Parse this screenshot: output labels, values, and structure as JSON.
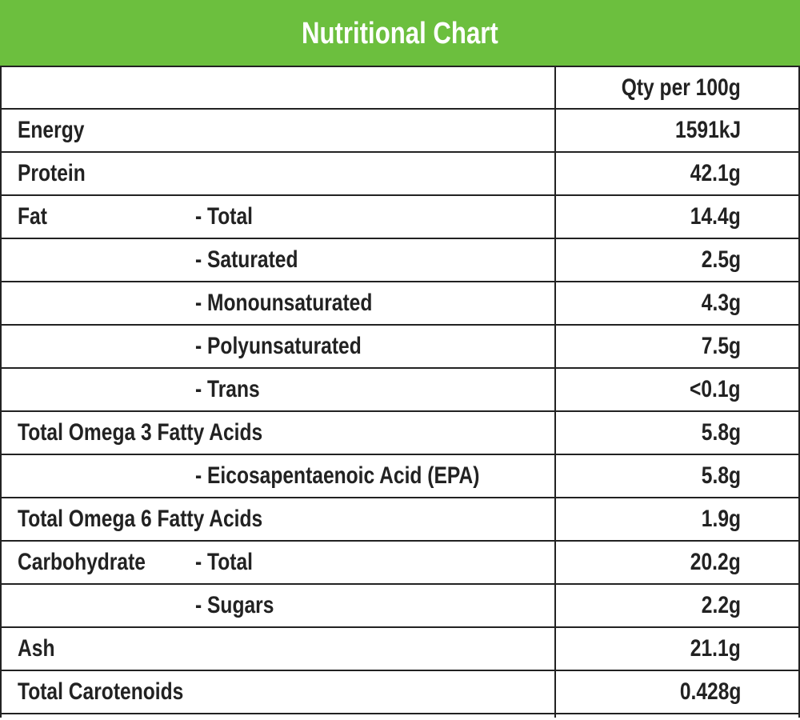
{
  "header": {
    "title": "Nutritional Chart"
  },
  "table": {
    "column_header": "Qty per 100g",
    "rows": [
      {
        "label": "Energy",
        "value": "1591kJ"
      },
      {
        "label": "Protein",
        "value": "42.1g"
      },
      {
        "label": "Fat",
        "sub": "- Total",
        "value": "14.4g"
      },
      {
        "sub": "- Saturated",
        "value": "2.5g"
      },
      {
        "sub": "- Monounsaturated",
        "value": "4.3g"
      },
      {
        "sub": "- Polyunsaturated",
        "value": "7.5g"
      },
      {
        "sub": "- Trans",
        "value": "<0.1g"
      },
      {
        "label": "Total Omega 3 Fatty Acids",
        "value": "5.8g"
      },
      {
        "sub": "- Eicosapentaenoic Acid (EPA)",
        "value": "5.8g"
      },
      {
        "label": "Total Omega 6 Fatty Acids",
        "value": "1.9g"
      },
      {
        "label": "Carbohydrate",
        "sub": "- Total",
        "value": "20.2g"
      },
      {
        "sub": "- Sugars",
        "value": "2.2g"
      },
      {
        "label": "Ash",
        "value": "21.1g"
      },
      {
        "label": "Total Carotenoids",
        "value": "0.428g"
      }
    ]
  }
}
